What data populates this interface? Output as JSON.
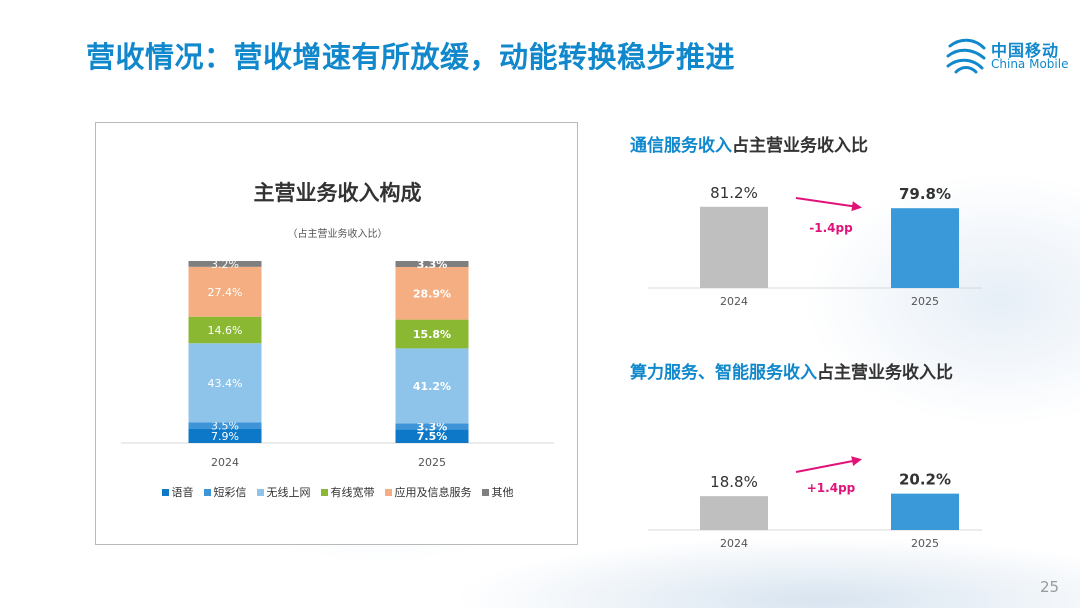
{
  "header": {
    "title": "营收情况：营收增速有所放缓，动能转换稳步推进"
  },
  "logo": {
    "cn": "中国移动",
    "en": "China Mobile"
  },
  "page_number": "25",
  "colors": {
    "title_blue": "#1188cc",
    "voice": "#0e78c8",
    "sms": "#3d94d6",
    "wireless": "#8ec4ea",
    "wired": "#8ab832",
    "apps": "#f4ae82",
    "other": "#7f7f7f",
    "gray_bar": "#bfbfbf",
    "blue_bar": "#3a9ad9",
    "arrow": "#e0137a"
  },
  "chart_data": [
    {
      "type": "bar",
      "stacked": true,
      "title": "主营业务收入构成",
      "subtitle": "（占主营业务收入比）",
      "categories": [
        "2024",
        "2025"
      ],
      "series": [
        {
          "name": "语音",
          "values": [
            7.9,
            7.5
          ],
          "labels": [
            "7.9%",
            "7.5%"
          ],
          "color": "#0e78c8"
        },
        {
          "name": "短彩信",
          "values": [
            3.5,
            3.3
          ],
          "labels": [
            "3.5%",
            "3.3%"
          ],
          "color": "#3d94d6"
        },
        {
          "name": "无线上网",
          "values": [
            43.4,
            41.2
          ],
          "labels": [
            "43.4%",
            "41.2%"
          ],
          "color": "#8ec4ea"
        },
        {
          "name": "有线宽带",
          "values": [
            14.6,
            15.8
          ],
          "labels": [
            "14.6%",
            "15.8%"
          ],
          "color": "#8ab832"
        },
        {
          "name": "应用及信息服务",
          "values": [
            27.4,
            28.9
          ],
          "labels": [
            "27.4%",
            "28.9%"
          ],
          "color": "#f4ae82"
        },
        {
          "name": "其他",
          "values": [
            3.2,
            3.3
          ],
          "labels": [
            "3.2%",
            "3.3%"
          ],
          "color": "#7f7f7f"
        }
      ],
      "ylim": [
        0,
        100
      ],
      "grid": false,
      "legend": "bottom"
    },
    {
      "type": "bar",
      "title_highlight": "通信服务收入",
      "title_rest": "占主营业务收入比",
      "categories": [
        "2024",
        "2025"
      ],
      "values": [
        81.2,
        79.8
      ],
      "labels": [
        "81.2%",
        "79.8%"
      ],
      "bar_colors": [
        "#bfbfbf",
        "#3a9ad9"
      ],
      "change_label": "-1.4pp",
      "change_direction": "down"
    },
    {
      "type": "bar",
      "title_highlight": "算力服务、智能服务收入",
      "title_rest": "占主营业务收入比",
      "categories": [
        "2024",
        "2025"
      ],
      "values": [
        18.8,
        20.2
      ],
      "labels": [
        "18.8%",
        "20.2%"
      ],
      "bar_colors": [
        "#bfbfbf",
        "#3a9ad9"
      ],
      "change_label": "+1.4pp",
      "change_direction": "up"
    }
  ]
}
